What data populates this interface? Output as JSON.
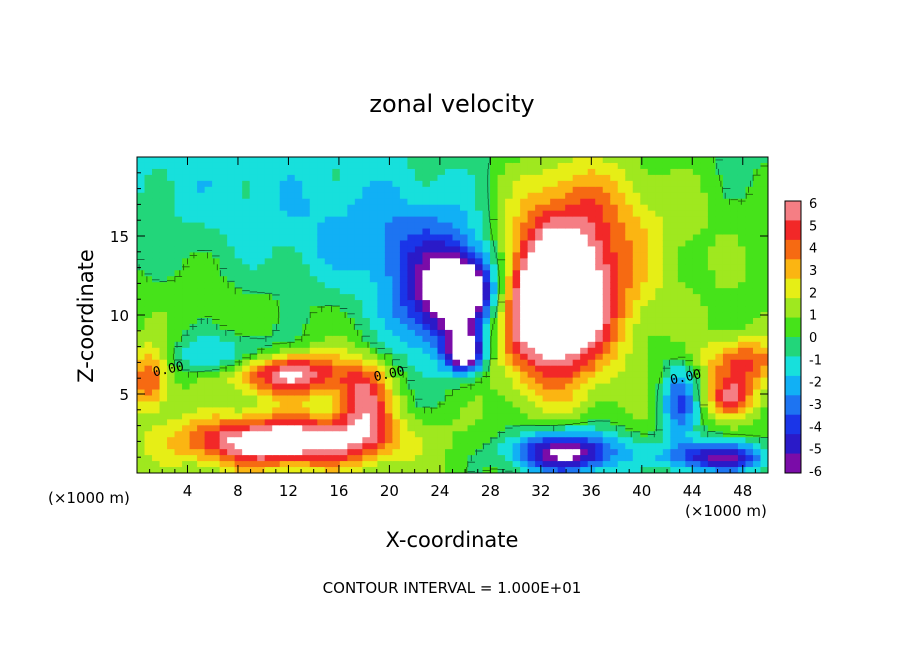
{
  "chart_data": {
    "type": "heatmap",
    "title": "zonal velocity",
    "xlabel": "X-coordinate",
    "ylabel": "Z-coordinate",
    "x_unit_left": "(×1000 m)",
    "x_unit_right": "(×1000 m)",
    "footer": "CONTOUR INTERVAL = 1.000E+01",
    "xlim": [
      0,
      50
    ],
    "ylim": [
      0,
      20
    ],
    "x_ticks": [
      4,
      8,
      12,
      16,
      20,
      24,
      28,
      32,
      36,
      40,
      44,
      48
    ],
    "y_ticks": [
      5,
      10,
      15
    ],
    "colorbar": {
      "range": [
        -6,
        6
      ],
      "ticks": [
        6,
        5,
        4,
        3,
        2,
        1,
        0,
        -1,
        -2,
        -3,
        -4,
        -5,
        -6
      ],
      "colors": [
        "#7a0ca8",
        "#2a1ac8",
        "#1a35e8",
        "#1d74f2",
        "#11b0f5",
        "#17e0dc",
        "#22d67a",
        "#46e31a",
        "#9fe81f",
        "#e6ee16",
        "#fbb512",
        "#f66a12",
        "#f22828",
        "#f57e84"
      ]
    },
    "zero_contour_labels": [
      "0.00",
      "0.00",
      "0.00"
    ],
    "features": [
      {
        "x": 9,
        "z": 7.4,
        "value": -3.6,
        "rx": 6,
        "rz": 1.3
      },
      {
        "x": 22,
        "z": 14.5,
        "value": -2.6,
        "rx": 11,
        "rz": 4
      },
      {
        "x": 24,
        "z": 10.5,
        "value": -4.6,
        "rx": 4.2,
        "rz": 4
      },
      {
        "x": 26,
        "z": 11.5,
        "value": -7,
        "rx": 2.5,
        "rz": 2.2
      },
      {
        "x": 26,
        "z": 7.6,
        "value": -7,
        "rx": 1.4,
        "rz": 1.2
      },
      {
        "x": 12,
        "z": 6.5,
        "value": 7,
        "rx": 4.5,
        "rz": 1.5
      },
      {
        "x": 11.5,
        "z": 2,
        "value": 7,
        "rx": 8,
        "rz": 1.6
      },
      {
        "x": 18,
        "z": 4.5,
        "value": 4.5,
        "rx": 2.2,
        "rz": 2.5
      },
      {
        "x": 33,
        "z": 10.5,
        "value": 7.5,
        "rx": 4,
        "rz": 4.5
      },
      {
        "x": 34,
        "z": 14,
        "value": 4.5,
        "rx": 6,
        "rz": 6
      },
      {
        "x": 34,
        "z": 1.3,
        "value": -7,
        "rx": 4.5,
        "rz": 1.4
      },
      {
        "x": 46,
        "z": 1,
        "value": -6,
        "rx": 4,
        "rz": 1
      },
      {
        "x": 48,
        "z": 7,
        "value": 4,
        "rx": 3,
        "rz": 1.5
      },
      {
        "x": 47,
        "z": 4.8,
        "value": 4,
        "rx": 2,
        "rz": 1.2
      },
      {
        "x": 43,
        "z": 4.5,
        "value": -4,
        "rx": 1.5,
        "rz": 2.5
      },
      {
        "x": 5,
        "z": 18,
        "value": -1,
        "rx": 12,
        "rz": 5
      },
      {
        "x": 1,
        "z": 6,
        "value": 4,
        "rx": 1.5,
        "rz": 2
      },
      {
        "x": 40,
        "z": 17,
        "value": 1,
        "rx": 8,
        "rz": 4
      }
    ]
  }
}
